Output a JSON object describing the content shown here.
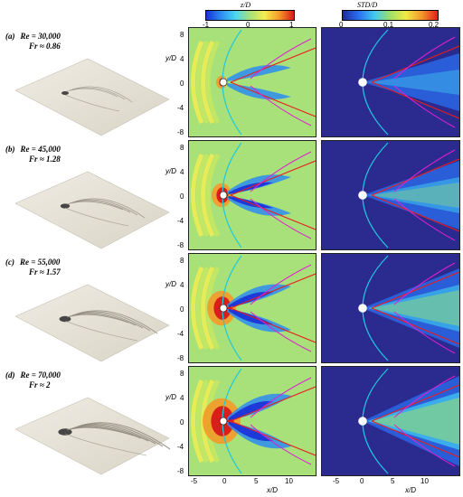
{
  "colorbars": {
    "left": {
      "title": "z/D",
      "ticks": [
        "-1",
        "0",
        "1"
      ]
    },
    "right": {
      "title": "STD/D",
      "ticks": [
        "0",
        "0.1",
        "0.2"
      ]
    }
  },
  "rows": [
    {
      "tag": "(a)",
      "re": "Re = 30,000",
      "fr": "Fr ≈ 0.86"
    },
    {
      "tag": "(b)",
      "re": "Re = 45,000",
      "fr": "Fr ≈ 1.28"
    },
    {
      "tag": "(c)",
      "re": "Re = 55,000",
      "fr": "Fr ≈ 1.57"
    },
    {
      "tag": "(d)",
      "re": "Re = 70,000",
      "fr": "Fr ≈ 2"
    }
  ],
  "y_axis": {
    "label": "y/D",
    "ticks": [
      "8",
      "4",
      "0",
      "-4",
      "-8"
    ]
  },
  "x_axis": {
    "label": "x/D",
    "ticks": [
      "-5",
      "0",
      "5",
      "10"
    ]
  },
  "colors": {
    "contour_low": "#1f3bd0",
    "contour_mid": "#a8e07a",
    "contour_high": "#d81818",
    "std_bg": "#2a2a8f",
    "cyan_line": "#20c8e0",
    "red_line": "#e81e1e",
    "magenta_line": "#e020d0"
  }
}
